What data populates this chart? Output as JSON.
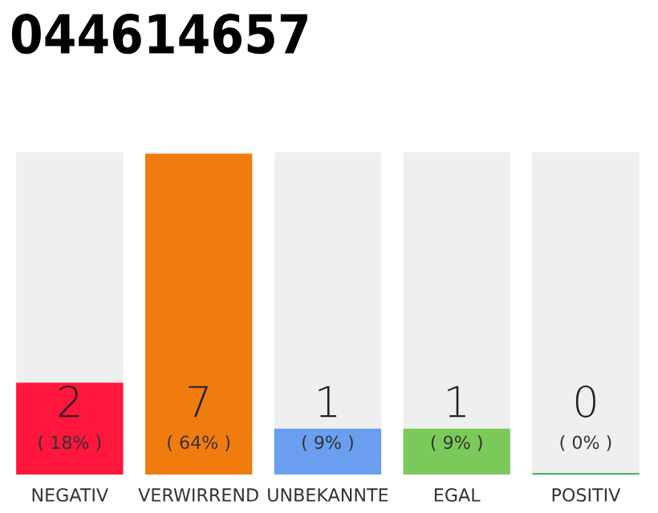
{
  "chart_data": {
    "type": "bar",
    "title": "044614657",
    "stacked": true,
    "categories": [
      "NEGATIV",
      "VERWIRREND",
      "UNBEKANNTE",
      "EGAL",
      "POSITIV"
    ],
    "series": [
      {
        "colors": [
          "#ff163d",
          "#f07c0f",
          "#6a9ff0",
          "#7bc95a",
          "#2eaa3c"
        ],
        "values": [
          2,
          7,
          1,
          1,
          0
        ],
        "value_labels": [
          "2",
          "7",
          "1",
          "1",
          "0"
        ]
      },
      {
        "color": "#efefef",
        "values": [
          5,
          0,
          6,
          6,
          7
        ]
      }
    ],
    "ylim": [
      0,
      7
    ],
    "annotations": [
      "( 18% )",
      "( 64% )",
      "( 9% )",
      "( 9% )",
      "( 0% )"
    ],
    "tick_labels": "x",
    "grid": false,
    "legend": false
  }
}
